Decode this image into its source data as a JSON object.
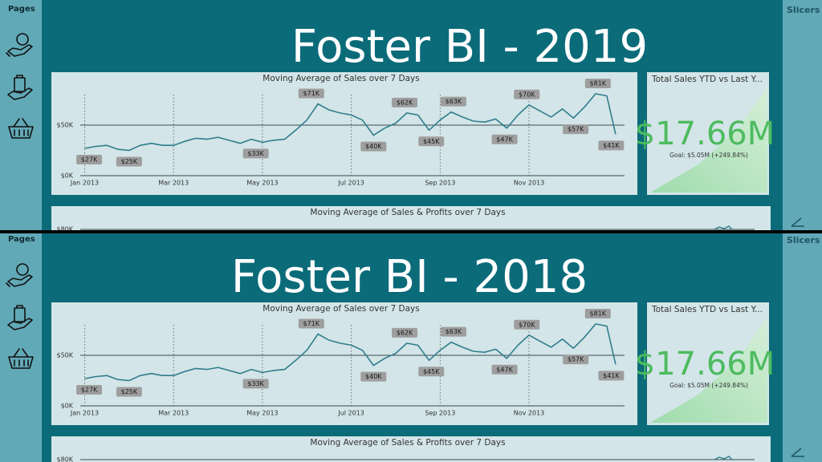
{
  "screens": [
    {
      "sidebar": {
        "heading": "Pages"
      },
      "slicers": {
        "heading": "Slicers"
      },
      "title": "Foster BI - 2019",
      "sales_chart": {
        "type": "line",
        "title": "Moving Average of Sales over 7 Days",
        "color": "#2f7d8c",
        "x": [
          1.0,
          1.25,
          1.5,
          1.75,
          2.0,
          2.25,
          2.5,
          2.75,
          3.0,
          3.25,
          3.5,
          3.75,
          4.0,
          4.25,
          4.5,
          4.75,
          5.0,
          5.25,
          5.5,
          5.75,
          6.0,
          6.25,
          6.5,
          6.75,
          7.0,
          7.25,
          7.5,
          7.75,
          8.0,
          8.25,
          8.5,
          8.75,
          9.0,
          9.25,
          9.5,
          9.75,
          10.0,
          10.25,
          10.5,
          10.75,
          11.0,
          11.25,
          11.5,
          11.75,
          12.0,
          12.25,
          12.5,
          12.75,
          12.95
        ],
        "values": [
          27000,
          29000,
          30000,
          26000,
          25000,
          30000,
          32000,
          30000,
          30000,
          34000,
          37000,
          36000,
          38000,
          35000,
          32000,
          36000,
          33000,
          35000,
          36000,
          45000,
          55000,
          71000,
          65000,
          62000,
          60000,
          55000,
          40000,
          47000,
          52000,
          62000,
          60000,
          45000,
          55000,
          63000,
          58000,
          54000,
          53000,
          56000,
          47000,
          60000,
          70000,
          64000,
          58000,
          66000,
          57000,
          68000,
          81000,
          79000,
          41000
        ],
        "xlim": [
          0.9,
          13.15
        ],
        "ylim": [
          0,
          90000
        ],
        "xticks": [
          {
            "value": 1,
            "label": "Jan 2013"
          },
          {
            "value": 3,
            "label": "Mar 2013"
          },
          {
            "value": 5,
            "label": "May 2013"
          },
          {
            "value": 7,
            "label": "Jul 2013"
          },
          {
            "value": 9,
            "label": "Sep 2013"
          },
          {
            "value": 11,
            "label": "Nov 2013"
          }
        ],
        "yticks": [
          {
            "value": 0,
            "label": "$0K"
          },
          {
            "value": 50000,
            "label": "$50K"
          }
        ],
        "annotations": [
          {
            "x": 1.1,
            "value": 27000,
            "label": "$27K"
          },
          {
            "x": 2.0,
            "value": 25000,
            "label": "$25K"
          },
          {
            "x": 4.85,
            "value": 33000,
            "label": "$33K"
          },
          {
            "x": 6.1,
            "value": 71000,
            "label": "$71K"
          },
          {
            "x": 7.5,
            "value": 40000,
            "label": "$40K"
          },
          {
            "x": 8.2,
            "value": 62000,
            "label": "$62K"
          },
          {
            "x": 8.8,
            "value": 45000,
            "label": "$45K"
          },
          {
            "x": 9.3,
            "value": 63000,
            "label": "$63K"
          },
          {
            "x": 10.45,
            "value": 47000,
            "label": "$47K"
          },
          {
            "x": 10.95,
            "value": 70000,
            "label": "$70K"
          },
          {
            "x": 12.05,
            "value": 57000,
            "label": "$57K"
          },
          {
            "x": 12.55,
            "value": 81000,
            "label": "$81K"
          },
          {
            "x": 12.85,
            "value": 41000,
            "label": "$41K"
          }
        ]
      },
      "kpi": {
        "title": "Total Sales YTD vs Last Y...",
        "value": "$17.66M",
        "goal": "Goal: $5.05M (+249.84%)"
      },
      "profit_chart": {
        "title": "Moving Average of Sales & Profits over 7 Days",
        "yticks": [
          {
            "value": 80000,
            "label": "$80K"
          }
        ]
      }
    },
    {
      "sidebar": {
        "heading": "Pages"
      },
      "slicers": {
        "heading": "Slicers"
      },
      "title": "Foster BI - 2018",
      "sales_chart": {
        "type": "line",
        "title": "Moving Average of Sales over 7 Days",
        "color": "#2f7d8c",
        "x": [
          1.0,
          1.25,
          1.5,
          1.75,
          2.0,
          2.25,
          2.5,
          2.75,
          3.0,
          3.25,
          3.5,
          3.75,
          4.0,
          4.25,
          4.5,
          4.75,
          5.0,
          5.25,
          5.5,
          5.75,
          6.0,
          6.25,
          6.5,
          6.75,
          7.0,
          7.25,
          7.5,
          7.75,
          8.0,
          8.25,
          8.5,
          8.75,
          9.0,
          9.25,
          9.5,
          9.75,
          10.0,
          10.25,
          10.5,
          10.75,
          11.0,
          11.25,
          11.5,
          11.75,
          12.0,
          12.25,
          12.5,
          12.75,
          12.95
        ],
        "values": [
          27000,
          29000,
          30000,
          26000,
          25000,
          30000,
          32000,
          30000,
          30000,
          34000,
          37000,
          36000,
          38000,
          35000,
          32000,
          36000,
          33000,
          35000,
          36000,
          45000,
          55000,
          71000,
          65000,
          62000,
          60000,
          55000,
          40000,
          47000,
          52000,
          62000,
          60000,
          45000,
          55000,
          63000,
          58000,
          54000,
          53000,
          56000,
          47000,
          60000,
          70000,
          64000,
          58000,
          66000,
          57000,
          68000,
          81000,
          79000,
          41000
        ],
        "xlim": [
          0.9,
          13.15
        ],
        "ylim": [
          0,
          90000
        ],
        "xticks": [
          {
            "value": 1,
            "label": "Jan 2013"
          },
          {
            "value": 3,
            "label": "Mar 2013"
          },
          {
            "value": 5,
            "label": "May 2013"
          },
          {
            "value": 7,
            "label": "Jul 2013"
          },
          {
            "value": 9,
            "label": "Sep 2013"
          },
          {
            "value": 11,
            "label": "Nov 2013"
          }
        ],
        "yticks": [
          {
            "value": 0,
            "label": "$0K"
          },
          {
            "value": 50000,
            "label": "$50K"
          }
        ],
        "annotations": [
          {
            "x": 1.1,
            "value": 27000,
            "label": "$27K"
          },
          {
            "x": 2.0,
            "value": 25000,
            "label": "$25K"
          },
          {
            "x": 4.85,
            "value": 33000,
            "label": "$33K"
          },
          {
            "x": 6.1,
            "value": 71000,
            "label": "$71K"
          },
          {
            "x": 7.5,
            "value": 40000,
            "label": "$40K"
          },
          {
            "x": 8.2,
            "value": 62000,
            "label": "$62K"
          },
          {
            "x": 8.8,
            "value": 45000,
            "label": "$45K"
          },
          {
            "x": 9.3,
            "value": 63000,
            "label": "$63K"
          },
          {
            "x": 10.45,
            "value": 47000,
            "label": "$47K"
          },
          {
            "x": 10.95,
            "value": 70000,
            "label": "$70K"
          },
          {
            "x": 12.05,
            "value": 57000,
            "label": "$57K"
          },
          {
            "x": 12.55,
            "value": 81000,
            "label": "$81K"
          },
          {
            "x": 12.85,
            "value": 41000,
            "label": "$41K"
          }
        ]
      },
      "kpi": {
        "title": "Total Sales YTD vs Last Y...",
        "value": "$17.66M",
        "goal": "Goal: $5.05M (+249.84%)"
      },
      "profit_chart": {
        "title": "Moving Average of Sales & Profits over 7 Days",
        "yticks": [
          {
            "value": 80000,
            "label": "$80K"
          }
        ]
      }
    }
  ]
}
